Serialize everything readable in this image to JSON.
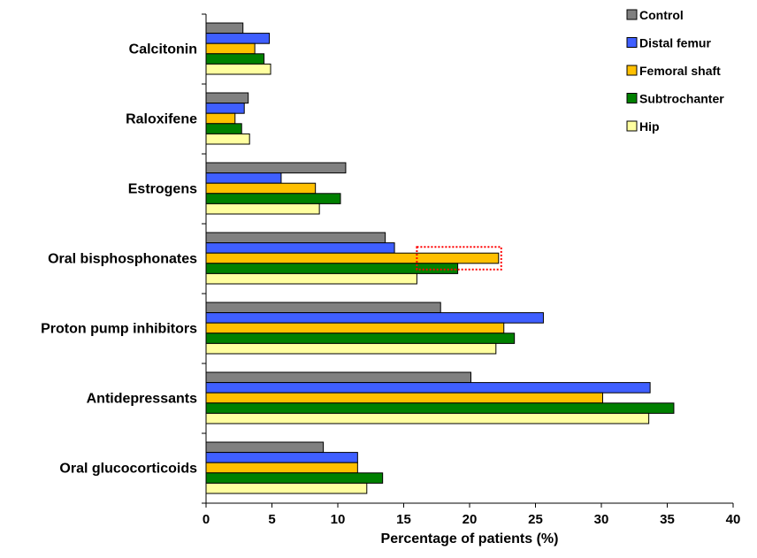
{
  "chart_data": {
    "type": "bar",
    "orientation": "horizontal",
    "xlabel": "Percentage of patients (%)",
    "ylabel": "",
    "xlim": [
      0,
      40
    ],
    "xticks": [
      0,
      5,
      10,
      15,
      20,
      25,
      30,
      35,
      40
    ],
    "categories": [
      "Calcitonin",
      "Raloxifene",
      "Estrogens",
      "Oral bisphosphonates",
      "Proton pump inhibitors",
      "Antidepressants",
      "Oral glucocorticoids"
    ],
    "series": [
      {
        "name": "Control",
        "color": "#808080",
        "values": [
          2.8,
          3.2,
          10.6,
          13.6,
          17.8,
          20.1,
          8.9
        ]
      },
      {
        "name": "Distal femur",
        "color": "#3f5fff",
        "values": [
          4.8,
          2.9,
          5.7,
          14.3,
          25.6,
          33.7,
          11.5
        ]
      },
      {
        "name": "Femoral shaft",
        "color": "#ffc000",
        "values": [
          3.7,
          2.2,
          8.3,
          22.2,
          22.6,
          30.1,
          11.5
        ]
      },
      {
        "name": "Subtrochanter",
        "color": "#008000",
        "values": [
          4.4,
          2.7,
          10.2,
          19.1,
          23.4,
          35.5,
          13.4
        ]
      },
      {
        "name": "Hip",
        "color": "#ffffa0",
        "values": [
          4.9,
          3.3,
          8.6,
          16.0,
          22.0,
          33.6,
          12.2
        ]
      }
    ],
    "highlight": {
      "category": "Oral bisphosphonates",
      "series": "Femoral shaft",
      "from": 16,
      "to": 22.2,
      "color": "#ff0000",
      "style": "dotted"
    },
    "grid": false,
    "legend": {
      "position": "top-right"
    }
  }
}
